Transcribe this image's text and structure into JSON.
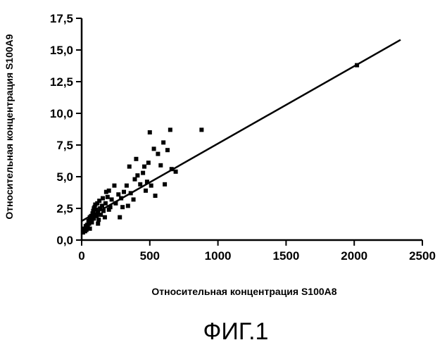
{
  "chart_data": {
    "type": "scatter",
    "title": "",
    "xlabel": "Относительная концентрация S100A8",
    "ylabel": "Относительная концентрация S100A9",
    "xlim": [
      0,
      2500
    ],
    "ylim": [
      0,
      17.5
    ],
    "x_ticks": [
      "0",
      "500",
      "1000",
      "1500",
      "2000",
      "2500"
    ],
    "y_ticks": [
      "0,0",
      "2,5",
      "5,0",
      "7,5",
      "10,0",
      "12,5",
      "15,0",
      "17,5"
    ],
    "grid": false,
    "legend": "none",
    "series": [
      {
        "points": [
          [
            10,
            0.6
          ],
          [
            18,
            0.9
          ],
          [
            25,
            0.7
          ],
          [
            30,
            1.1
          ],
          [
            35,
            0.8
          ],
          [
            40,
            1.2
          ],
          [
            45,
            1.0
          ],
          [
            50,
            1.5
          ],
          [
            55,
            1.3
          ],
          [
            60,
            1.8
          ],
          [
            65,
            1.6
          ],
          [
            70,
            1.9
          ],
          [
            75,
            1.4
          ],
          [
            80,
            2.1
          ],
          [
            85,
            2.3
          ],
          [
            90,
            1.7
          ],
          [
            95,
            2.6
          ],
          [
            100,
            2.0
          ],
          [
            100,
            2.8
          ],
          [
            105,
            2.4
          ],
          [
            110,
            1.9
          ],
          [
            115,
            2.9
          ],
          [
            120,
            2.2
          ],
          [
            125,
            1.6
          ],
          [
            130,
            3.1
          ],
          [
            135,
            2.5
          ],
          [
            140,
            2.0
          ],
          [
            150,
            2.7
          ],
          [
            155,
            3.3
          ],
          [
            160,
            2.3
          ],
          [
            170,
            1.8
          ],
          [
            175,
            2.9
          ],
          [
            180,
            3.8
          ],
          [
            190,
            3.4
          ],
          [
            200,
            3.9
          ],
          [
            210,
            2.6
          ],
          [
            220,
            3.2
          ],
          [
            240,
            4.3
          ],
          [
            250,
            2.9
          ],
          [
            270,
            3.6
          ],
          [
            280,
            1.8
          ],
          [
            290,
            3.3
          ],
          [
            300,
            2.6
          ],
          [
            310,
            3.8
          ],
          [
            330,
            4.3
          ],
          [
            340,
            2.7
          ],
          [
            350,
            5.8
          ],
          [
            360,
            3.7
          ],
          [
            380,
            3.2
          ],
          [
            390,
            4.8
          ],
          [
            400,
            6.4
          ],
          [
            410,
            5.1
          ],
          [
            430,
            4.4
          ],
          [
            450,
            5.3
          ],
          [
            460,
            5.8
          ],
          [
            470,
            3.9
          ],
          [
            480,
            4.6
          ],
          [
            490,
            6.1
          ],
          [
            500,
            8.5
          ],
          [
            510,
            4.3
          ],
          [
            530,
            7.2
          ],
          [
            540,
            3.5
          ],
          [
            560,
            6.8
          ],
          [
            580,
            5.9
          ],
          [
            600,
            7.7
          ],
          [
            610,
            4.4
          ],
          [
            630,
            7.1
          ],
          [
            650,
            8.7
          ],
          [
            660,
            5.6
          ],
          [
            690,
            5.4
          ],
          [
            880,
            8.7
          ],
          [
            2020,
            13.8
          ],
          [
            60,
            0.9
          ],
          [
            120,
            1.3
          ],
          [
            90,
            2.5
          ],
          [
            200,
            2.4
          ]
        ]
      }
    ],
    "fit_line": {
      "x": [
        0,
        2340
      ],
      "y": [
        1.5,
        15.8
      ]
    },
    "caption": "ФИГ.1"
  }
}
